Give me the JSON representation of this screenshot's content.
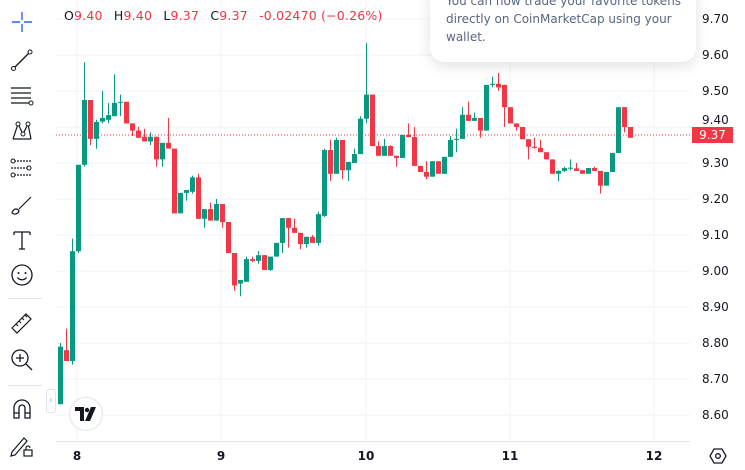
{
  "legend": {
    "open_label": "O",
    "open": "9.40",
    "high_label": "H",
    "high": "9.40",
    "low_label": "L",
    "low": "9.37",
    "close_label": "C",
    "close": "9.37",
    "change": "-0.02470 (−0.26%)"
  },
  "popup": {
    "text": "You can now trade your favorite tokens directly on CoinMarketCap using your wallet."
  },
  "toolbar": {
    "tools": [
      {
        "name": "crosshair-icon"
      },
      {
        "name": "trend-line-icon"
      },
      {
        "name": "fib-retracement-icon"
      },
      {
        "name": "pattern-icon"
      },
      {
        "name": "projection-icon"
      },
      {
        "name": "brush-icon"
      },
      {
        "name": "text-icon"
      },
      {
        "name": "emoji-icon"
      },
      {
        "name": "ruler-icon"
      },
      {
        "name": "zoom-in-icon"
      },
      {
        "name": "magnet-icon"
      },
      {
        "name": "lock-drawings-icon"
      }
    ],
    "active_color": "#2962ff"
  },
  "colors": {
    "up": "#089981",
    "down": "#f23645",
    "grid": "#f0f3fa"
  },
  "current_price": "9.37",
  "chart_data": {
    "type": "candlestick",
    "interval": "1h",
    "y_ticks": [
      "9.70",
      "9.60",
      "9.50",
      "9.40",
      "9.30",
      "9.20",
      "9.10",
      "9.00",
      "8.90",
      "8.80",
      "8.70",
      "8.60"
    ],
    "x_ticks": [
      "8",
      "9",
      "10",
      "11",
      "12"
    ],
    "ylim": [
      8.56,
      9.72
    ],
    "grid": true,
    "candles": [
      [
        8.63,
        8.8,
        8.63,
        8.79
      ],
      [
        8.78,
        8.84,
        8.75,
        8.75
      ],
      [
        8.75,
        9.09,
        8.74,
        9.055
      ],
      [
        9.055,
        9.295,
        9.05,
        9.295
      ],
      [
        9.295,
        9.58,
        9.29,
        9.475
      ],
      [
        9.475,
        9.475,
        9.35,
        9.367
      ],
      [
        9.367,
        9.42,
        9.34,
        9.414
      ],
      [
        9.415,
        9.5,
        9.41,
        9.425
      ],
      [
        9.42,
        9.467,
        9.41,
        9.433
      ],
      [
        9.43,
        9.547,
        9.43,
        9.467
      ],
      [
        9.468,
        9.49,
        9.43,
        9.47
      ],
      [
        9.47,
        9.47,
        9.41,
        9.41
      ],
      [
        9.41,
        9.41,
        9.375,
        9.39
      ],
      [
        9.39,
        9.4,
        9.37,
        9.37
      ],
      [
        9.373,
        9.395,
        9.36,
        9.36
      ],
      [
        9.36,
        9.385,
        9.35,
        9.373
      ],
      [
        9.373,
        9.373,
        9.29,
        9.31
      ],
      [
        9.31,
        9.356,
        9.29,
        9.356
      ],
      [
        9.356,
        9.425,
        9.34,
        9.34
      ],
      [
        9.34,
        9.34,
        9.16,
        9.16
      ],
      [
        9.16,
        9.217,
        9.16,
        9.217
      ],
      [
        9.217,
        9.225,
        9.195,
        9.225
      ],
      [
        9.22,
        9.265,
        9.215,
        9.26
      ],
      [
        9.26,
        9.27,
        9.145,
        9.145
      ],
      [
        9.145,
        9.172,
        9.12,
        9.172
      ],
      [
        9.172,
        9.19,
        9.14,
        9.14
      ],
      [
        9.14,
        9.2,
        9.14,
        9.186
      ],
      [
        9.186,
        9.186,
        9.12,
        9.136
      ],
      [
        9.136,
        9.136,
        9.05,
        9.05
      ],
      [
        9.05,
        9.05,
        8.945,
        8.96
      ],
      [
        8.965,
        8.975,
        8.93,
        8.975
      ],
      [
        8.97,
        9.04,
        8.97,
        9.033
      ],
      [
        9.033,
        9.04,
        9.025,
        9.028
      ],
      [
        9.028,
        9.055,
        9.02,
        9.044
      ],
      [
        9.044,
        9.044,
        9.003,
        9.003
      ],
      [
        9.003,
        9.04,
        9.0,
        9.04
      ],
      [
        9.04,
        9.078,
        9.04,
        9.078
      ],
      [
        9.078,
        9.147,
        9.05,
        9.147
      ],
      [
        9.147,
        9.147,
        9.065,
        9.12
      ],
      [
        9.12,
        9.145,
        9.106,
        9.106
      ],
      [
        9.106,
        9.106,
        9.06,
        9.075
      ],
      [
        9.075,
        9.095,
        9.065,
        9.095
      ],
      [
        9.095,
        9.1,
        9.078,
        9.078
      ],
      [
        9.078,
        9.165,
        9.07,
        9.158
      ],
      [
        9.153,
        9.34,
        9.15,
        9.336
      ],
      [
        9.336,
        9.365,
        9.25,
        9.27
      ],
      [
        9.27,
        9.37,
        9.27,
        9.364
      ],
      [
        9.364,
        9.364,
        9.255,
        9.28
      ],
      [
        9.28,
        9.303,
        9.25,
        9.303
      ],
      [
        9.3,
        9.34,
        9.3,
        9.325
      ],
      [
        9.325,
        9.43,
        9.325,
        9.423
      ],
      [
        9.423,
        9.633,
        9.41,
        9.49
      ],
      [
        9.49,
        9.49,
        9.347,
        9.347
      ],
      [
        9.347,
        9.36,
        9.32,
        9.32
      ],
      [
        9.32,
        9.367,
        9.32,
        9.347
      ],
      [
        9.347,
        9.35,
        9.32,
        9.32
      ],
      [
        9.32,
        9.32,
        9.29,
        9.314
      ],
      [
        9.314,
        9.378,
        9.314,
        9.378
      ],
      [
        9.378,
        9.41,
        9.372,
        9.372
      ],
      [
        9.372,
        9.4,
        9.292,
        9.292
      ],
      [
        9.292,
        9.292,
        9.275,
        9.275
      ],
      [
        9.275,
        9.305,
        9.255,
        9.262
      ],
      [
        9.262,
        9.305,
        9.262,
        9.305
      ],
      [
        9.305,
        9.305,
        9.27,
        9.27
      ],
      [
        9.27,
        9.317,
        9.27,
        9.317
      ],
      [
        9.317,
        9.375,
        9.317,
        9.364
      ],
      [
        9.364,
        9.395,
        9.33,
        9.367
      ],
      [
        9.367,
        9.455,
        9.367,
        9.434
      ],
      [
        9.434,
        9.47,
        9.42,
        9.417
      ],
      [
        9.417,
        9.44,
        9.417,
        9.425
      ],
      [
        9.425,
        9.425,
        9.37,
        9.39
      ],
      [
        9.39,
        9.517,
        9.39,
        9.517
      ],
      [
        9.517,
        9.54,
        9.51,
        9.52
      ],
      [
        9.52,
        9.55,
        9.5,
        9.51
      ],
      [
        9.517,
        9.517,
        9.4,
        9.455
      ],
      [
        9.455,
        9.455,
        9.41,
        9.41
      ],
      [
        9.41,
        9.41,
        9.39,
        9.4
      ],
      [
        9.4,
        9.4,
        9.366,
        9.366
      ],
      [
        9.366,
        9.366,
        9.31,
        9.345
      ],
      [
        9.345,
        9.37,
        9.34,
        9.342
      ],
      [
        9.342,
        9.365,
        9.33,
        9.33
      ],
      [
        9.33,
        9.33,
        9.31,
        9.31
      ],
      [
        9.31,
        9.31,
        9.27,
        9.27
      ],
      [
        9.27,
        9.28,
        9.25,
        9.278
      ],
      [
        9.278,
        9.29,
        9.275,
        9.286
      ],
      [
        9.285,
        9.31,
        9.28,
        9.287
      ],
      [
        9.285,
        9.3,
        9.278,
        9.278
      ],
      [
        9.28,
        9.28,
        9.27,
        9.27
      ],
      [
        9.27,
        9.286,
        9.27,
        9.286
      ],
      [
        9.286,
        9.29,
        9.278,
        9.278
      ],
      [
        9.278,
        9.278,
        9.215,
        9.237
      ],
      [
        9.237,
        9.275,
        9.237,
        9.275
      ],
      [
        9.275,
        9.328,
        9.275,
        9.328
      ],
      [
        9.328,
        9.455,
        9.328,
        9.455
      ],
      [
        9.455,
        9.455,
        9.385,
        9.4
      ],
      [
        9.4,
        9.4,
        9.37,
        9.37
      ]
    ]
  }
}
